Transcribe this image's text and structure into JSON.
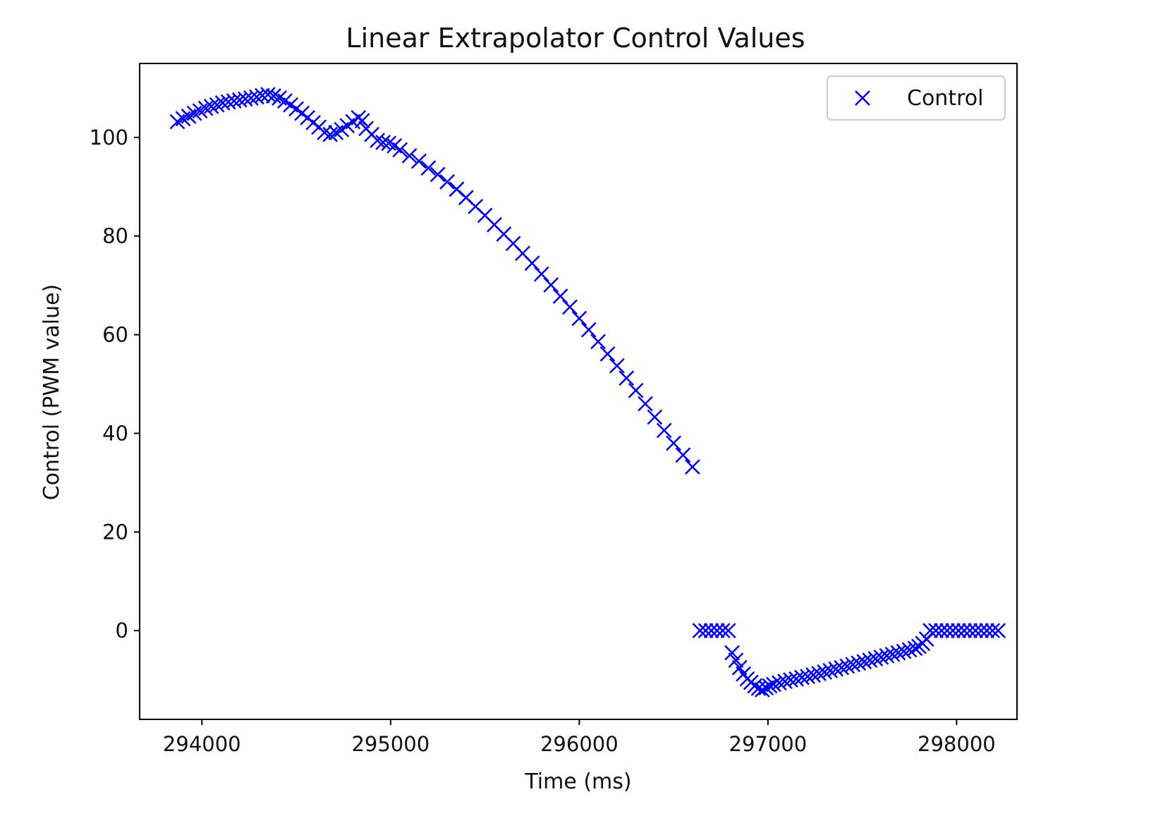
{
  "chart_data": {
    "type": "scatter",
    "title": "Linear Extrapolator Control Values",
    "xlabel": "Time (ms)",
    "ylabel": "Control (PWM value)",
    "xlim": [
      293670,
      298320
    ],
    "ylim": [
      -18,
      115
    ],
    "xticks": [
      294000,
      295000,
      296000,
      297000,
      298000
    ],
    "yticks": [
      0,
      20,
      40,
      60,
      80,
      100
    ],
    "grid": false,
    "legend_position": "top-right",
    "marker": "x",
    "series": [
      {
        "name": "Control",
        "color": "#0000ff",
        "points": [
          [
            293870,
            103.2
          ],
          [
            293900,
            103.8
          ],
          [
            293930,
            104.3
          ],
          [
            293960,
            104.9
          ],
          [
            293990,
            105.4
          ],
          [
            294020,
            105.9
          ],
          [
            294050,
            106.3
          ],
          [
            294080,
            106.6
          ],
          [
            294110,
            107.0
          ],
          [
            294140,
            107.2
          ],
          [
            294170,
            107.4
          ],
          [
            294200,
            107.6
          ],
          [
            294230,
            107.8
          ],
          [
            294260,
            108.0
          ],
          [
            294290,
            108.2
          ],
          [
            294320,
            108.5
          ],
          [
            294350,
            108.7
          ],
          [
            294380,
            108.4
          ],
          [
            294410,
            108.0
          ],
          [
            294440,
            107.4
          ],
          [
            294470,
            106.6
          ],
          [
            294500,
            105.8
          ],
          [
            294530,
            104.9
          ],
          [
            294560,
            104.0
          ],
          [
            294590,
            103.0
          ],
          [
            294620,
            102.1
          ],
          [
            294650,
            101.0
          ],
          [
            294680,
            100.6
          ],
          [
            294710,
            101.0
          ],
          [
            294740,
            101.6
          ],
          [
            294770,
            102.4
          ],
          [
            294800,
            103.2
          ],
          [
            294830,
            104.0
          ],
          [
            294850,
            103.4
          ],
          [
            294870,
            101.8
          ],
          [
            294900,
            100.6
          ],
          [
            294930,
            99.4
          ],
          [
            294960,
            99.0
          ],
          [
            294990,
            98.8
          ],
          [
            295020,
            98.3
          ],
          [
            295050,
            97.5
          ],
          [
            295100,
            96.3
          ],
          [
            295150,
            95.2
          ],
          [
            295200,
            93.8
          ],
          [
            295250,
            92.5
          ],
          [
            295300,
            91.0
          ],
          [
            295350,
            89.5
          ],
          [
            295400,
            87.8
          ],
          [
            295450,
            86.0
          ],
          [
            295500,
            84.2
          ],
          [
            295550,
            82.3
          ],
          [
            295600,
            80.4
          ],
          [
            295650,
            78.5
          ],
          [
            295700,
            76.5
          ],
          [
            295750,
            74.5
          ],
          [
            295800,
            72.3
          ],
          [
            295850,
            70.1
          ],
          [
            295900,
            67.8
          ],
          [
            295950,
            65.6
          ],
          [
            296000,
            63.3
          ],
          [
            296050,
            61.0
          ],
          [
            296100,
            58.6
          ],
          [
            296150,
            56.1
          ],
          [
            296200,
            53.7
          ],
          [
            296250,
            51.2
          ],
          [
            296300,
            48.7
          ],
          [
            296350,
            46.0
          ],
          [
            296400,
            43.3
          ],
          [
            296450,
            40.6
          ],
          [
            296500,
            38.0
          ],
          [
            296550,
            35.6
          ],
          [
            296600,
            33.2
          ],
          [
            296640,
            0.0
          ],
          [
            296670,
            0.0
          ],
          [
            296700,
            0.0
          ],
          [
            296730,
            0.0
          ],
          [
            296760,
            0.0
          ],
          [
            296790,
            0.0
          ],
          [
            296810,
            -4.5
          ],
          [
            296830,
            -6.0
          ],
          [
            296850,
            -7.5
          ],
          [
            296870,
            -8.8
          ],
          [
            296890,
            -9.8
          ],
          [
            296910,
            -10.5
          ],
          [
            296930,
            -11.2
          ],
          [
            296950,
            -11.7
          ],
          [
            296970,
            -12.0
          ],
          [
            296990,
            -11.6
          ],
          [
            297010,
            -11.2
          ],
          [
            297030,
            -10.9
          ],
          [
            297060,
            -10.6
          ],
          [
            297090,
            -10.3
          ],
          [
            297120,
            -10.0
          ],
          [
            297150,
            -9.8
          ],
          [
            297180,
            -9.5
          ],
          [
            297210,
            -9.3
          ],
          [
            297240,
            -9.0
          ],
          [
            297270,
            -8.7
          ],
          [
            297300,
            -8.4
          ],
          [
            297330,
            -8.1
          ],
          [
            297360,
            -7.8
          ],
          [
            297390,
            -7.5
          ],
          [
            297420,
            -7.2
          ],
          [
            297450,
            -6.9
          ],
          [
            297480,
            -6.6
          ],
          [
            297510,
            -6.3
          ],
          [
            297540,
            -6.0
          ],
          [
            297570,
            -5.7
          ],
          [
            297600,
            -5.4
          ],
          [
            297630,
            -5.1
          ],
          [
            297660,
            -4.8
          ],
          [
            297690,
            -4.5
          ],
          [
            297720,
            -4.2
          ],
          [
            297750,
            -3.9
          ],
          [
            297780,
            -3.6
          ],
          [
            297800,
            -3.2
          ],
          [
            297820,
            -2.6
          ],
          [
            297840,
            -1.7
          ],
          [
            297860,
            0.0
          ],
          [
            297890,
            0.0
          ],
          [
            297920,
            0.0
          ],
          [
            297950,
            0.0
          ],
          [
            297980,
            0.0
          ],
          [
            298010,
            0.0
          ],
          [
            298040,
            0.0
          ],
          [
            298070,
            0.0
          ],
          [
            298100,
            0.0
          ],
          [
            298130,
            0.0
          ],
          [
            298160,
            0.0
          ],
          [
            298190,
            0.0
          ],
          [
            298220,
            0.0
          ]
        ]
      }
    ]
  }
}
